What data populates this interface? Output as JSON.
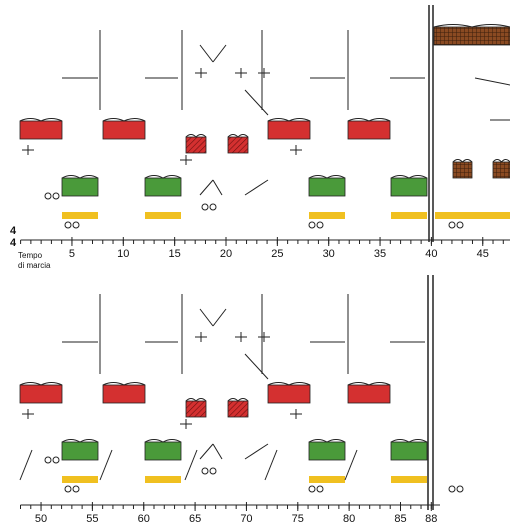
{
  "time_signature": {
    "numerator": "4",
    "denominator": "4"
  },
  "tempo": {
    "line1": "Tempo",
    "line2": "di marcia"
  },
  "ruler_top": {
    "measures": [
      5,
      10,
      15,
      20,
      25,
      30,
      35,
      40,
      45
    ],
    "start": 0
  },
  "ruler_bottom": {
    "measures": [
      50,
      55,
      60,
      65,
      70,
      75,
      80,
      85,
      88
    ],
    "start": 48
  }
}
